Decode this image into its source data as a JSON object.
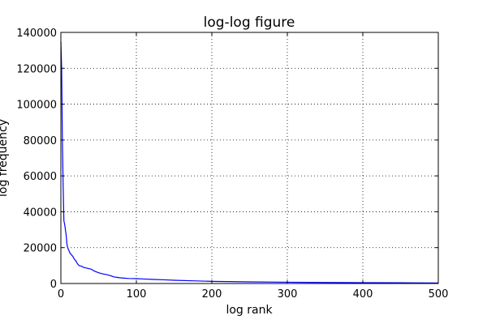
{
  "chart_data": {
    "type": "line",
    "title": "log-log figure",
    "xlabel": "log rank",
    "ylabel": "log frequency",
    "xlim": [
      0,
      500
    ],
    "ylim": [
      0,
      140000
    ],
    "x_ticks": [
      0,
      100,
      200,
      300,
      400,
      500
    ],
    "y_ticks": [
      0,
      20000,
      40000,
      60000,
      80000,
      100000,
      120000,
      140000
    ],
    "x_tick_labels": [
      "0",
      "100",
      "200",
      "300",
      "400",
      "500"
    ],
    "y_tick_labels": [
      "0",
      "20000",
      "40000",
      "60000",
      "80000",
      "100000",
      "120000",
      "140000"
    ],
    "grid": true,
    "line_color": "#0000ff",
    "series": [
      {
        "x": [
          0,
          1,
          2,
          3,
          4,
          5,
          6,
          7,
          8,
          9,
          10,
          11,
          12,
          14,
          16,
          18,
          20,
          22,
          24,
          26,
          28,
          30,
          35,
          40,
          42,
          45,
          50,
          55,
          60,
          65,
          70,
          75,
          80,
          90,
          100,
          110,
          120,
          140,
          150,
          175,
          200,
          250,
          300,
          350,
          400,
          450,
          500
        ],
        "y": [
          135000,
          120000,
          80000,
          55000,
          35000,
          33000,
          30000,
          27000,
          22000,
          20000,
          19000,
          18000,
          17000,
          16000,
          15000,
          13500,
          12500,
          11000,
          10000,
          9800,
          9500,
          9000,
          8500,
          8000,
          7500,
          6800,
          6000,
          5400,
          5000,
          4500,
          3700,
          3400,
          3100,
          2800,
          2700,
          2500,
          2300,
          2000,
          1800,
          1500,
          1200,
          900,
          700,
          550,
          450,
          380,
          300
        ]
      }
    ]
  }
}
